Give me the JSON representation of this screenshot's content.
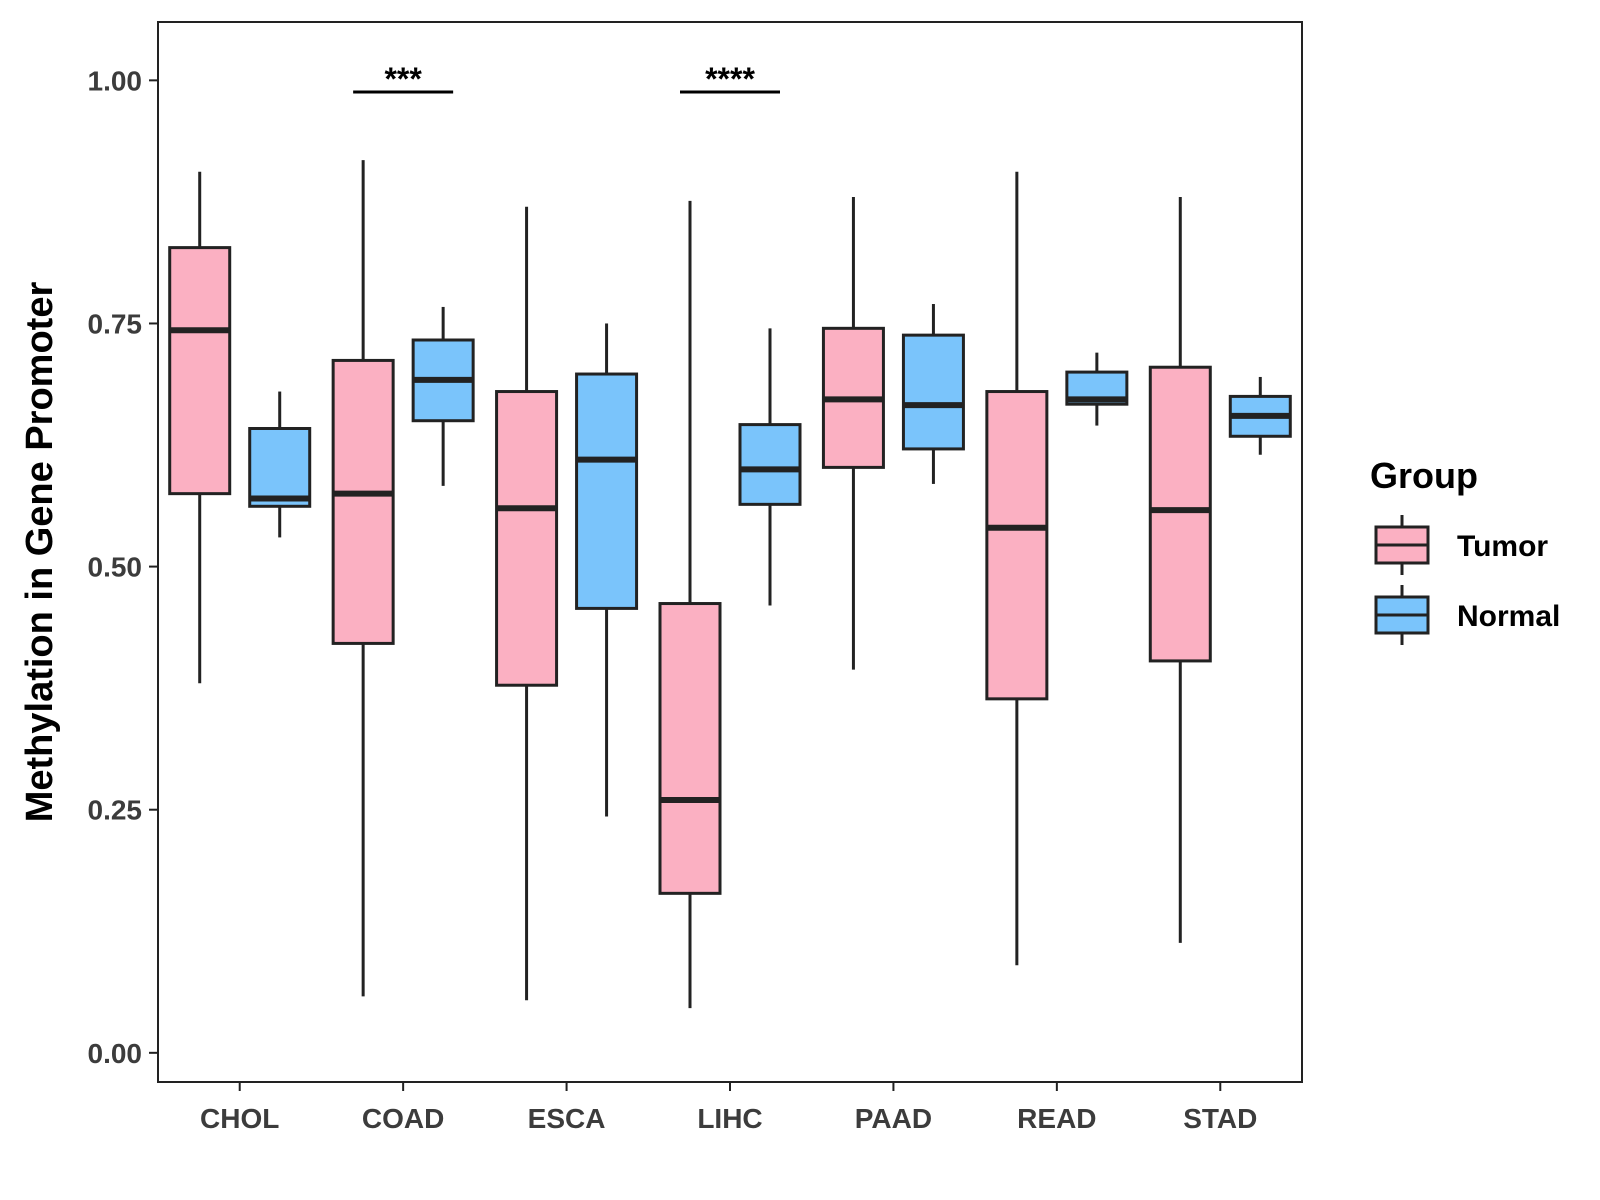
{
  "chart_data": {
    "type": "boxplot",
    "title": "",
    "xlabel": "",
    "ylabel": "Methylation in Gene Promoter",
    "ylim": [
      -0.03,
      1.06
    ],
    "yticks": [
      0,
      0.25,
      0.5,
      0.75,
      1.0
    ],
    "ytick_labels": [
      "0.00",
      "0.25",
      "0.50",
      "0.75",
      "1.00"
    ],
    "categories": [
      "CHOL",
      "COAD",
      "ESCA",
      "LIHC",
      "PAAD",
      "READ",
      "STAD"
    ],
    "legend": {
      "title": "Group",
      "position": "right",
      "entries": [
        "Tumor",
        "Normal"
      ]
    },
    "series": [
      {
        "name": "Tumor",
        "color": "#fbb0c2",
        "boxes": [
          {
            "min": 0.38,
            "q1": 0.575,
            "median": 0.743,
            "q3": 0.828,
            "max": 0.906
          },
          {
            "min": 0.058,
            "q1": 0.421,
            "median": 0.575,
            "q3": 0.712,
            "max": 0.918
          },
          {
            "min": 0.054,
            "q1": 0.378,
            "median": 0.56,
            "q3": 0.68,
            "max": 0.87
          },
          {
            "min": 0.046,
            "q1": 0.164,
            "median": 0.26,
            "q3": 0.462,
            "max": 0.876
          },
          {
            "min": 0.394,
            "q1": 0.602,
            "median": 0.672,
            "q3": 0.745,
            "max": 0.88
          },
          {
            "min": 0.09,
            "q1": 0.364,
            "median": 0.54,
            "q3": 0.68,
            "max": 0.906
          },
          {
            "min": 0.113,
            "q1": 0.403,
            "median": 0.558,
            "q3": 0.705,
            "max": 0.88
          }
        ]
      },
      {
        "name": "Normal",
        "color": "#7ac4fb",
        "boxes": [
          {
            "min": 0.53,
            "q1": 0.562,
            "median": 0.57,
            "q3": 0.642,
            "max": 0.68
          },
          {
            "min": 0.583,
            "q1": 0.65,
            "median": 0.692,
            "q3": 0.733,
            "max": 0.767
          },
          {
            "min": 0.243,
            "q1": 0.457,
            "median": 0.61,
            "q3": 0.698,
            "max": 0.75
          },
          {
            "min": 0.46,
            "q1": 0.564,
            "median": 0.6,
            "q3": 0.646,
            "max": 0.745
          },
          {
            "min": 0.585,
            "q1": 0.621,
            "median": 0.666,
            "q3": 0.738,
            "max": 0.77
          },
          {
            "min": 0.645,
            "q1": 0.667,
            "median": 0.672,
            "q3": 0.7,
            "max": 0.72
          },
          {
            "min": 0.615,
            "q1": 0.634,
            "median": 0.655,
            "q3": 0.675,
            "max": 0.695
          }
        ]
      }
    ],
    "annotations": [
      {
        "category": "COAD",
        "label": "***",
        "y": 0.988
      },
      {
        "category": "LIHC",
        "label": "****",
        "y": 0.988
      }
    ]
  }
}
